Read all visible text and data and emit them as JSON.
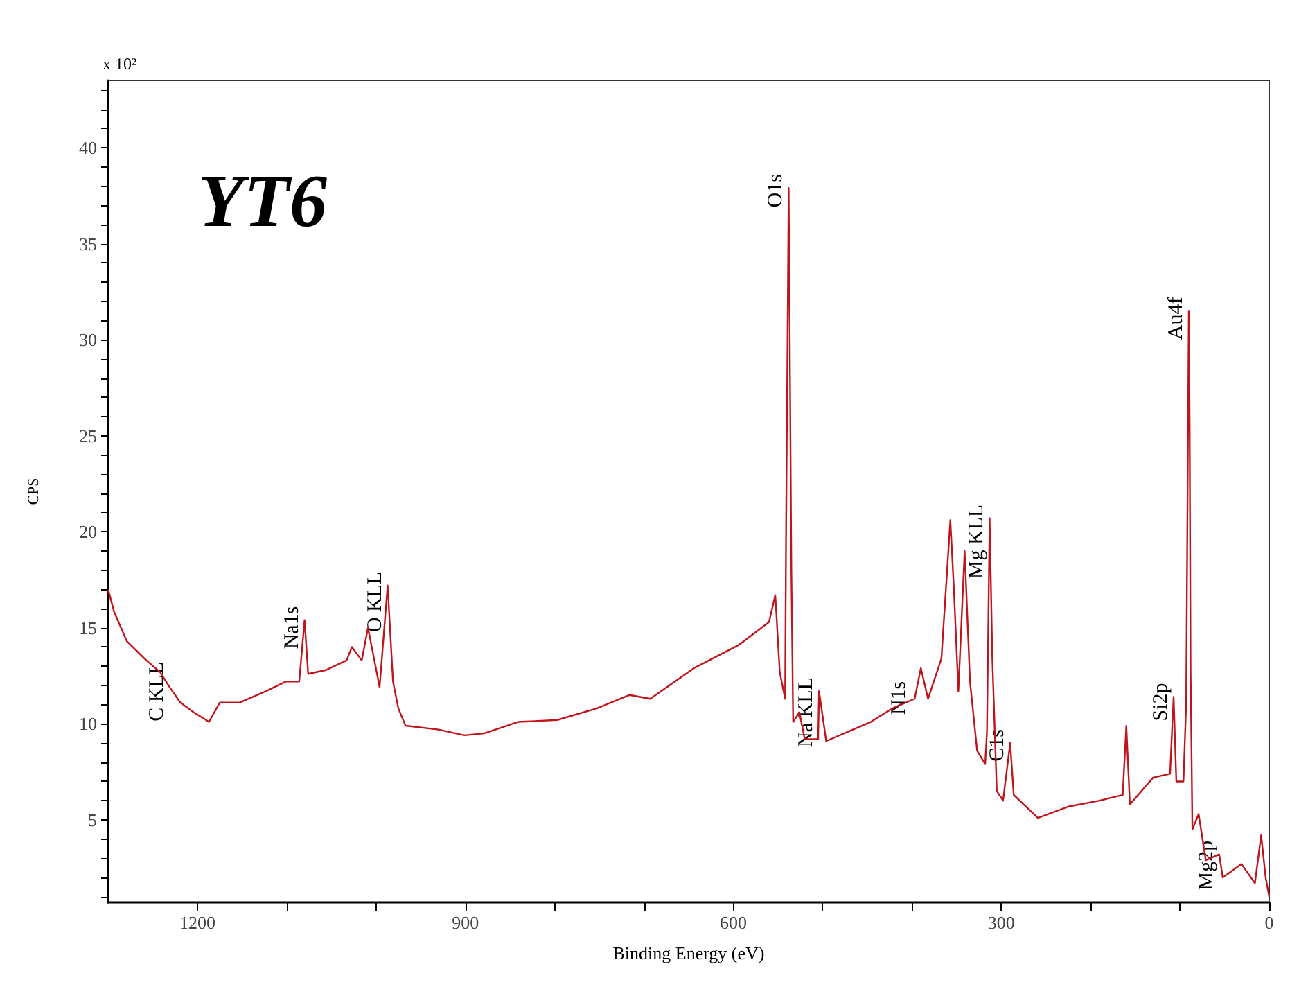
{
  "chart_data": {
    "type": "line",
    "title": "YT6",
    "xlabel": "Binding Energy (eV)",
    "ylabel": "CPS",
    "annotations": [
      "x 10²",
      {
        "text": "C KLL",
        "x": 1231,
        "y": 12.5
      },
      {
        "text": "Na1s",
        "x": 1080,
        "y": 15.4
      },
      {
        "text": "O KLL",
        "x": 987,
        "y": 17.2
      },
      {
        "text": "O1s",
        "x": 538,
        "y": 37.9
      },
      {
        "text": "Na KLL",
        "x": 504,
        "y": 11.7
      },
      {
        "text": "N1s",
        "x": 400,
        "y": 11.5
      },
      {
        "text": "Mg KLL",
        "x": 313,
        "y": 20.7
      },
      {
        "text": "C1s",
        "x": 290,
        "y": 9.0
      },
      {
        "text": "Si2p",
        "x": 107,
        "y": 11.4
      },
      {
        "text": "Au4f",
        "x": 90,
        "y": 31.5
      },
      {
        "text": "Mg2p",
        "x": 56,
        "y": 3.2
      }
    ],
    "xlim": [
      1300,
      0
    ],
    "xticks": [
      1200,
      {
        "value": 1100,
        "label": null
      },
      {
        "value": 1000,
        "label": null
      },
      900,
      {
        "value": 800,
        "label": null
      },
      {
        "value": 700,
        "label": null
      },
      600,
      {
        "value": 500,
        "label": null
      },
      {
        "value": 400,
        "label": null
      },
      300,
      {
        "value": 200,
        "label": null
      },
      {
        "value": 100,
        "label": null
      },
      0
    ],
    "ylim": [
      0.7,
      43.5
    ],
    "yticks": [
      {
        "value": 1,
        "label": null
      },
      {
        "value": 2,
        "label": null
      },
      {
        "value": 3,
        "label": null
      },
      {
        "value": 4,
        "label": null
      },
      5,
      {
        "value": 6,
        "label": null
      },
      {
        "value": 7,
        "label": null
      },
      {
        "value": 8,
        "label": null
      },
      {
        "value": 9,
        "label": null
      },
      10,
      {
        "value": 11,
        "label": null
      },
      {
        "value": 12,
        "label": null
      },
      {
        "value": 13,
        "label": null
      },
      {
        "value": 14,
        "label": null
      },
      15,
      {
        "value": 16,
        "label": null
      },
      {
        "value": 17,
        "label": null
      },
      {
        "value": 18,
        "label": null
      },
      {
        "value": 19,
        "label": null
      },
      20,
      {
        "value": 21,
        "label": null
      },
      {
        "value": 22,
        "label": null
      },
      {
        "value": 23,
        "label": null
      },
      {
        "value": 24,
        "label": null
      },
      25,
      {
        "value": 26,
        "label": null
      },
      {
        "value": 27,
        "label": null
      },
      {
        "value": 28,
        "label": null
      },
      {
        "value": 29,
        "label": null
      },
      30,
      {
        "value": 31,
        "label": null
      },
      {
        "value": 32,
        "label": null
      },
      {
        "value": 33,
        "label": null
      },
      {
        "value": 34,
        "label": null
      },
      35,
      {
        "value": 36,
        "label": null
      },
      {
        "value": 37,
        "label": null
      },
      {
        "value": 38,
        "label": null
      },
      {
        "value": 39,
        "label": null
      },
      40,
      {
        "value": 41,
        "label": null
      },
      {
        "value": 42,
        "label": null
      },
      {
        "value": 43,
        "label": null
      }
    ],
    "grid": false,
    "marker": "none",
    "line_style": "solid",
    "series": [
      {
        "color": "#c0141c",
        "x": [
          1300,
          1293,
          1279,
          1257,
          1242,
          1231,
          1219,
          1204,
          1187,
          1175,
          1153,
          1123,
          1101,
          1086,
          1080,
          1076,
          1056,
          1033,
          1027,
          1016,
          1009,
          1001,
          996,
          987,
          981,
          975,
          967,
          930,
          901,
          879,
          841,
          797,
          753,
          716,
          693,
          644,
          594,
          560,
          553,
          548,
          542,
          541,
          538,
          535,
          533,
          526,
          520,
          505,
          504,
          496,
          471,
          446,
          422,
          397,
          390,
          382,
          367,
          357,
          353,
          348,
          341,
          335,
          327,
          318,
          316,
          313,
          310,
          305,
          298,
          290,
          286,
          259,
          224,
          190,
          164,
          160,
          156,
          130,
          111,
          107,
          104,
          96,
          93,
          90,
          89,
          88,
          86,
          79,
          71,
          56,
          52,
          31,
          16,
          9,
          4,
          0
        ],
        "values": [
          17.0,
          15.8,
          14.3,
          13.3,
          12.7,
          11.9,
          11.1,
          10.6,
          10.1,
          11.1,
          11.1,
          11.7,
          12.2,
          12.2,
          15.4,
          12.6,
          12.8,
          13.3,
          14.0,
          13.3,
          15.0,
          13.1,
          11.9,
          17.2,
          12.2,
          10.8,
          9.9,
          9.7,
          9.4,
          9.5,
          10.1,
          10.2,
          10.8,
          11.5,
          11.3,
          12.9,
          14.1,
          15.3,
          16.7,
          12.7,
          11.3,
          19.3,
          37.9,
          18.1,
          10.1,
          10.6,
          9.2,
          9.2,
          11.7,
          9.1,
          9.6,
          10.1,
          10.8,
          11.3,
          12.9,
          11.3,
          13.4,
          20.6,
          17.0,
          11.7,
          19.0,
          12.2,
          8.6,
          7.9,
          9.6,
          20.7,
          13.4,
          6.5,
          6.0,
          9.0,
          6.3,
          5.1,
          5.7,
          6.0,
          6.3,
          9.9,
          5.8,
          7.2,
          7.4,
          11.4,
          7.0,
          7.0,
          11.0,
          31.5,
          25.1,
          12.7,
          4.5,
          5.3,
          2.9,
          3.2,
          2.0,
          2.7,
          1.7,
          4.2,
          2.0,
          1.0
        ]
      }
    ]
  }
}
